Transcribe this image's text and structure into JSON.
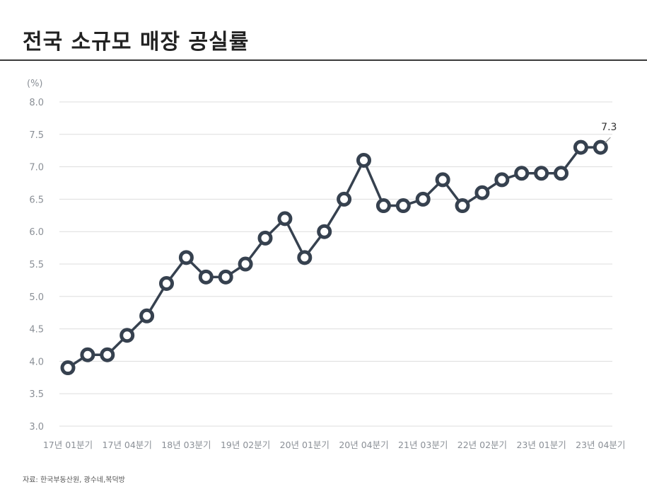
{
  "title": "전국 소규모 매장 공실률",
  "source": "자료: 한국부동산원, 광수네,복덕방",
  "colors": {
    "line": "#36414f",
    "marker_fill": "#ffffff",
    "grid": "#dddddd",
    "tick_text": "#8a8f96",
    "annotation": "#333333"
  },
  "chart_data": {
    "type": "line",
    "title": "전국 소규모 매장 공실률",
    "ylabel": "(%)",
    "xlabel": "",
    "ylim": [
      3.0,
      8.0
    ],
    "yticks": [
      "3.0",
      "3.5",
      "4.0",
      "4.5",
      "5.0",
      "5.5",
      "6.0",
      "6.5",
      "7.0",
      "7.5",
      "8.0"
    ],
    "grid": true,
    "xtick_labels": [
      "17년 01분기",
      "17년 04분기",
      "18년 03분기",
      "19년 02분기",
      "20년 01분기",
      "20년 04분기",
      "21년 03분기",
      "22년 02분기",
      "23년 01분기",
      "23년 04분기"
    ],
    "xtick_indices": [
      0,
      3,
      6,
      9,
      12,
      15,
      18,
      21,
      24,
      27
    ],
    "series": [
      {
        "values": [
          3.9,
          4.1,
          4.1,
          4.4,
          4.7,
          5.2,
          5.6,
          5.3,
          5.3,
          5.5,
          5.9,
          6.2,
          5.6,
          6.0,
          6.5,
          7.1,
          6.4,
          6.4,
          6.5,
          6.8,
          6.4,
          6.6,
          6.8,
          6.9,
          6.9,
          6.9,
          7.3,
          7.3
        ]
      }
    ],
    "annotation": {
      "index": 27,
      "text": "7.3"
    }
  }
}
